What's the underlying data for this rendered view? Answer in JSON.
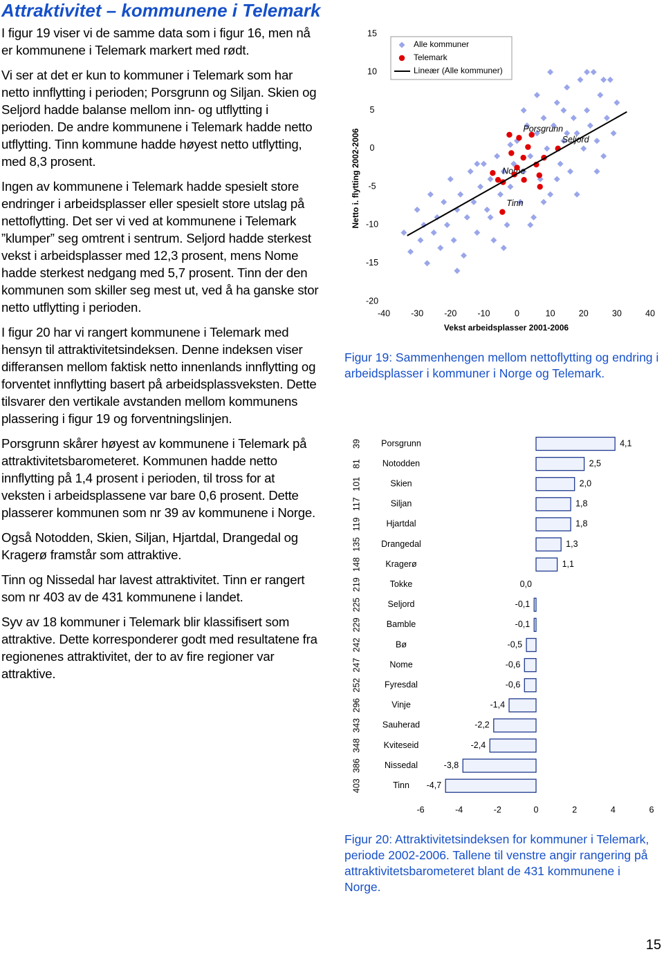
{
  "title": "Attraktivitet – kommunene i Telemark",
  "paragraphs": [
    "I figur 19 viser vi de samme data som i figur 16, men nå er kommunene i Telemark markert med rødt.",
    "Vi ser at det er kun to kommuner i Telemark som har netto innflytting i perioden; Porsgrunn og Siljan. Skien og Seljord hadde balanse mellom inn- og utflytting i perioden. De andre kommunene i Telemark hadde netto utflytting. Tinn kommune hadde høyest netto utflytting, med 8,3 prosent.",
    "Ingen av kommunene i Telemark hadde spesielt store endringer i arbeidsplasser eller spesielt store utslag på nettoflytting. Det ser vi ved at kommunene i Telemark ”klumper” seg omtrent i sentrum. Seljord hadde sterkest vekst i arbeidsplasser med 12,3 prosent, mens Nome hadde sterkest nedgang med 5,7 prosent. Tinn der den kommunen som skiller seg mest ut, ved å ha ganske stor netto utflytting i perioden.",
    "I figur 20 har vi rangert kommunene i Telemark med hensyn til attraktivitetsindeksen. Denne indeksen viser differansen mellom faktisk netto innenlands innflytting og forventet innflytting basert på arbeidsplassveksten. Dette tilsvarer den vertikale avstanden mellom kommunens plassering i figur 19 og forventningslinjen.",
    "Porsgrunn skårer høyest av kommunene i Telemark på attraktivitetsbarometeret. Kommunen hadde netto innflytting på 1,4 prosent i perioden, til tross for at veksten i arbeidsplassene var bare 0,6 prosent. Dette plasserer kommunen som nr 39 av kommunene i Norge.",
    "Også Notodden, Skien, Siljan, Hjartdal, Drangedal og Kragerø framstår som attraktive.",
    "Tinn og Nissedal har lavest attraktivitet. Tinn er rangert som nr 403 av de 431 kommunene i landet.",
    "Syv av 18 kommuner i Telemark blir klassifisert som attraktive. Dette korresponderer godt med resultatene fra regionenes attraktivitet, der to av fire regioner var attraktive."
  ],
  "page_number": "15",
  "chart_data": [
    {
      "type": "scatter",
      "caption": "Figur 19: Sammenhengen mellom nettoflytting og endring i arbeidsplasser i kommuner i Norge og Telemark.",
      "x_label": "Vekst arbeidsplasser 2001-2006",
      "y_label": "Netto i. flytting 2002-2006",
      "xlim": [
        -40,
        40
      ],
      "xticks": [
        -40,
        -30,
        -20,
        -10,
        0,
        10,
        20,
        30,
        40
      ],
      "ylim": [
        -20,
        15
      ],
      "yticks": [
        15,
        10,
        5,
        0,
        -5,
        -10,
        -15,
        -20
      ],
      "legend": "top-left",
      "series": [
        {
          "name": "Alle kommuner",
          "color": "#9aa6ea",
          "marker": "diamond",
          "x": [
            -34,
            -32,
            -30,
            -29,
            -28,
            -27,
            -26,
            -25,
            -24,
            -23,
            -22,
            -21,
            -20,
            -19,
            -18,
            -17,
            -16,
            -15,
            -14,
            -13,
            -12,
            -11,
            -10,
            -9,
            -8,
            -7,
            -6,
            -5,
            -4,
            -3,
            -2,
            -1,
            0,
            1,
            2,
            3,
            4,
            5,
            6,
            7,
            8,
            9,
            10,
            11,
            12,
            13,
            14,
            15,
            16,
            17,
            18,
            19,
            20,
            21,
            22,
            23,
            24,
            25,
            26,
            27,
            28,
            29,
            30,
            -12,
            -8,
            -4,
            4,
            8,
            12,
            15,
            18,
            21,
            24,
            -18,
            -2,
            6,
            10,
            14,
            26,
            2
          ],
          "values": [
            -11,
            -13.5,
            -8,
            -12,
            -10,
            -15,
            -6,
            -11,
            -9,
            -13,
            -7,
            -10,
            -4,
            -12,
            -8,
            -6,
            -14,
            -9,
            -3,
            -7,
            -11,
            -5,
            -2,
            -8,
            -4,
            -12,
            -1,
            -6,
            -3,
            -10,
            -5,
            -2,
            1,
            -7,
            -3,
            3,
            -1,
            -9,
            2,
            -4,
            4,
            0,
            -6,
            3,
            6,
            -2,
            1,
            8,
            -3,
            4,
            2,
            9,
            0,
            5,
            3,
            10,
            1,
            7,
            -1,
            4,
            9,
            2,
            6,
            -2,
            -9,
            -13,
            -10,
            -7,
            -4,
            2,
            -6,
            10,
            -3,
            -16,
            0.5,
            7,
            10,
            5,
            9,
            5
          ]
        },
        {
          "name": "Telemark",
          "color": "#e00000",
          "marker": "circle",
          "x": [
            0.6,
            12.3,
            -5.7,
            -4.4,
            -2.3,
            4.4,
            3.3,
            -1.7,
            1.9,
            5.8,
            0,
            -0.8,
            8.1,
            2.1,
            6.7,
            6.9,
            -4.2,
            -7.3
          ],
          "values": [
            1.4,
            0,
            -4.1,
            -8.3,
            1.8,
            1.8,
            0.2,
            -0.6,
            -1.2,
            -2.1,
            -2.5,
            -3.4,
            -1.2,
            -4.1,
            -3.5,
            -5,
            -4.4,
            -3.2
          ],
          "labels": [
            "Porsgrunn",
            "Seljord",
            "Nome",
            "Tinn",
            null,
            null,
            null,
            null,
            null,
            null,
            null,
            null,
            null,
            null,
            null,
            null,
            null,
            null
          ]
        },
        {
          "name": "Lineær (Alle kommuner)",
          "color": "#000000",
          "marker": "line",
          "x": [
            -33,
            33
          ],
          "values": [
            -11.4,
            4.8
          ]
        }
      ]
    },
    {
      "type": "bar",
      "orientation": "horizontal",
      "caption": "Figur 20: Attraktivitetsindeksen for kommuner i Telemark, periode 2002-2006. Tallene til venstre angir rangering på attraktivitetsbarometeret blant de 431 kommunene i Norge.",
      "categories": [
        "Porsgrunn",
        "Notodden",
        "Skien",
        "Siljan",
        "Hjartdal",
        "Drangedal",
        "Kragerø",
        "Tokke",
        "Seljord",
        "Bamble",
        "Bø",
        "Nome",
        "Fyresdal",
        "Vinje",
        "Sauherad",
        "Kviteseid",
        "Nissedal",
        "Tinn"
      ],
      "ranks": [
        39,
        81,
        101,
        117,
        119,
        135,
        148,
        219,
        225,
        229,
        242,
        247,
        252,
        296,
        343,
        348,
        386,
        403
      ],
      "values": [
        4.1,
        2.5,
        2.0,
        1.8,
        1.8,
        1.3,
        1.1,
        0.0,
        -0.1,
        -0.1,
        -0.5,
        -0.6,
        -0.6,
        -1.4,
        -2.2,
        -2.4,
        -3.8,
        -4.7
      ],
      "value_labels": [
        "4,1",
        "2,5",
        "2,0",
        "1,8",
        "1,8",
        "1,3",
        "1,1",
        "0,0",
        "-0,1",
        "-0,1",
        "-0,5",
        "-0,6",
        "-0,6",
        "-1,4",
        "-2,2",
        "-2,4",
        "-3,8",
        "-4,7"
      ],
      "color": "#eef2fc",
      "border_color": "#1f3a8f",
      "xlim": [
        -6,
        6
      ],
      "xticks": [
        -6,
        -4,
        -2,
        0,
        2,
        4,
        6
      ]
    }
  ]
}
